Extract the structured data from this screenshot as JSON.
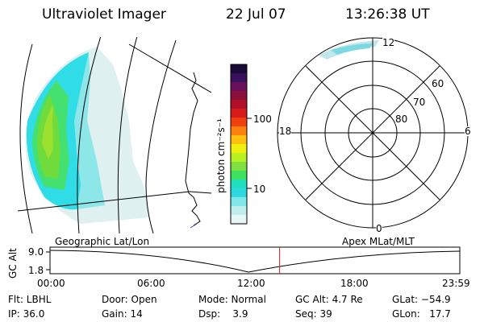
{
  "header": {
    "title": "Ultraviolet Imager",
    "date": "22 Jul 07",
    "time": "13:26:38 UT"
  },
  "colorbar": {
    "unit_label": "photon cm⁻²s⁻¹",
    "tick_labels": [
      "100",
      "10"
    ],
    "colors": [
      "#1a0b3a",
      "#3a0f5e",
      "#6a0f5c",
      "#8a0f3a",
      "#b0102a",
      "#d61a1a",
      "#f04010",
      "#ff8010",
      "#ffc010",
      "#f0f010",
      "#b8f020",
      "#80e040",
      "#40e060",
      "#20e0c0",
      "#30d8e0",
      "#80e8e8",
      "#c0eeee",
      "#e8f6f6"
    ]
  },
  "polar_plot": {
    "mlt_labels": [
      "12",
      "18",
      "6",
      "0"
    ],
    "lat_labels": [
      "60",
      "70",
      "80"
    ]
  },
  "timeline": {
    "left_label": "Geographic Lat/Lon",
    "right_label": "Apex MLat/MLT",
    "axis_title": "GC Alt",
    "y_ticks": [
      "9.0",
      "1.8"
    ],
    "time_ticks": [
      "00:00",
      "06:00",
      "12:00",
      "18:00",
      "23:59"
    ],
    "current_time_fraction": 0.5602,
    "marker_color": "#cc2222"
  },
  "info": {
    "filter": "Flt: LBHL",
    "ip": "IP: 36.0",
    "door": "Door: Open",
    "gain": "Gain: 14",
    "mode": "Mode: Normal",
    "dsp": "Dsp:    3.9",
    "gc_alt": "GC Alt: 4.7 Re",
    "seq": "Seq: 39",
    "glat": "GLat: −54.9",
    "glon": "GLon:   17.7"
  }
}
